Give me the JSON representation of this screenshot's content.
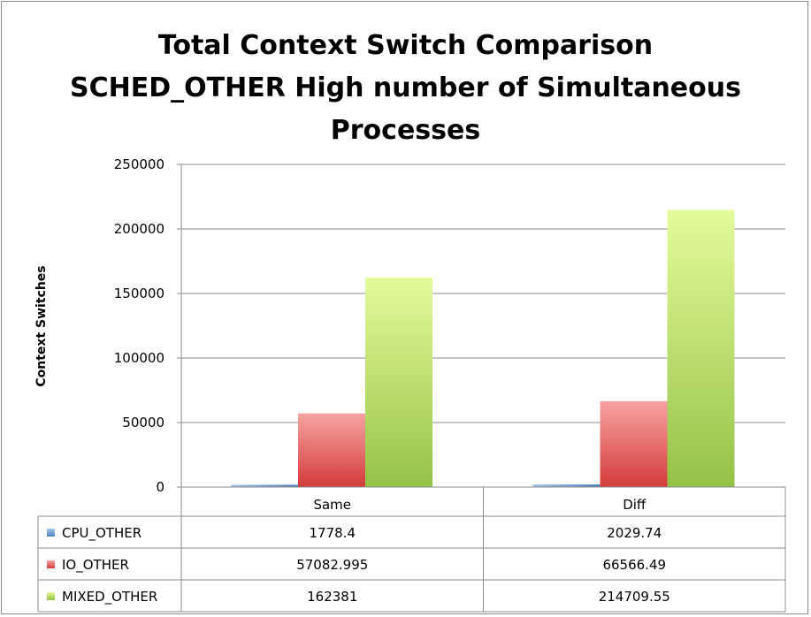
{
  "chart_data": {
    "type": "bar",
    "title_lines": [
      "Total Context Switch Comparison",
      "SCHED_OTHER High number of Simultaneous",
      "Processes"
    ],
    "xlabel": "",
    "ylabel": "Context Switches",
    "ylim": [
      0,
      250000
    ],
    "yticks": [
      0,
      50000,
      100000,
      150000,
      200000,
      250000
    ],
    "ytick_labels": [
      "0",
      "50000",
      "100000",
      "150000",
      "200000",
      "250000"
    ],
    "grid": true,
    "legend": "data-table",
    "categories": [
      "Same",
      "Diff"
    ],
    "series": [
      {
        "name": "CPU_OTHER",
        "values": [
          1778.4,
          2029.74
        ],
        "labels": [
          "1778.4",
          "2029.74"
        ],
        "color": "#4f81bd"
      },
      {
        "name": "IO_OTHER",
        "values": [
          57082.995,
          66566.49
        ],
        "labels": [
          "57082.995",
          "66566.49"
        ],
        "color": "#d94a48"
      },
      {
        "name": "MIXED_OTHER",
        "values": [
          162381,
          214709.55
        ],
        "labels": [
          "162381",
          "214709.55"
        ],
        "color": "#9bc94c"
      }
    ]
  }
}
